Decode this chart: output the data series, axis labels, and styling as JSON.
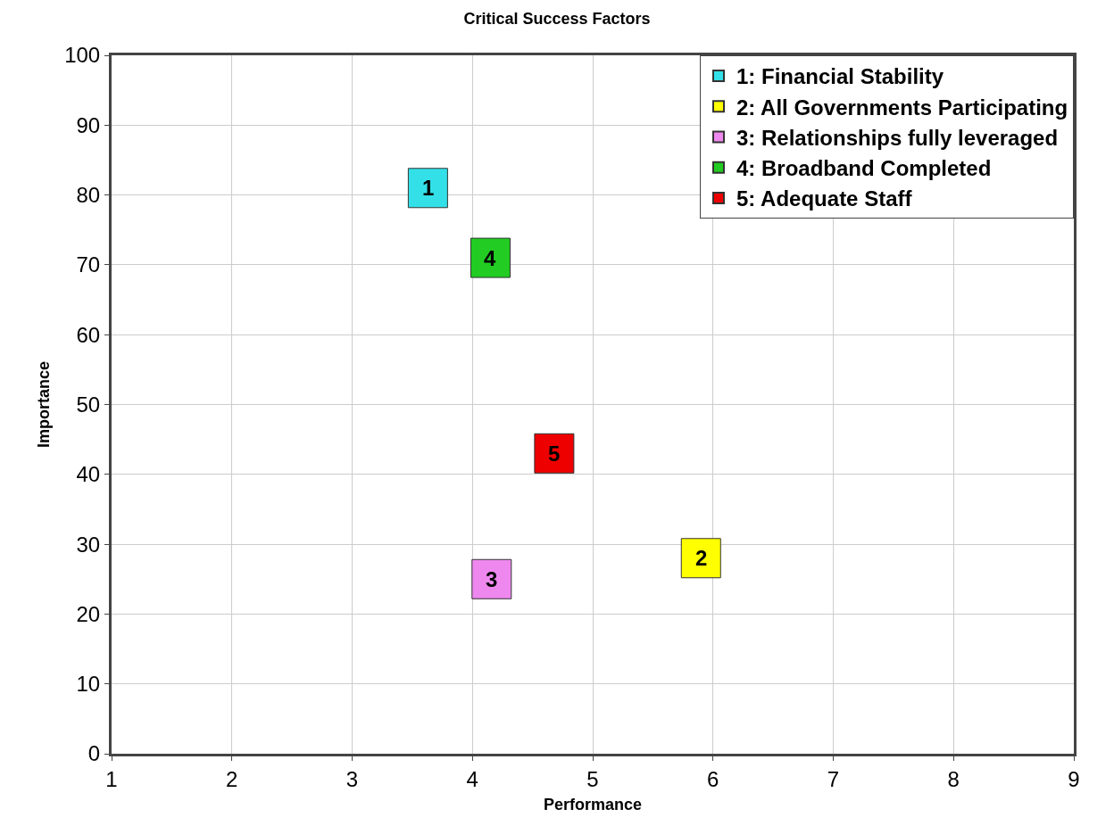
{
  "chart_data": {
    "type": "scatter",
    "title": "Critical Success Factors",
    "xlabel": "Performance",
    "ylabel": "Importance",
    "xlim": [
      1,
      9
    ],
    "xticks": [
      1,
      2,
      3,
      4,
      5,
      6,
      7,
      8,
      9
    ],
    "ylim": [
      0,
      100
    ],
    "yticks": [
      0,
      10,
      20,
      30,
      40,
      50,
      60,
      70,
      80,
      90,
      100
    ],
    "annotations": [
      {
        "text": "1",
        "x": 3.63,
        "y": 81
      },
      {
        "text": "2",
        "x": 5.9,
        "y": 28
      },
      {
        "text": "3",
        "x": 4.16,
        "y": 25
      },
      {
        "text": "4",
        "x": 4.15,
        "y": 71
      },
      {
        "text": "5",
        "x": 4.68,
        "y": 43
      }
    ],
    "grid": true,
    "legend": "top right",
    "marker": "square",
    "series": [
      {
        "name": "1: Financial Stability",
        "color": "#33e0e8",
        "x": [
          3.63
        ],
        "values": [
          81
        ]
      },
      {
        "name": "2: All Governments Participating",
        "color": "#ffff00",
        "x": [
          5.9
        ],
        "values": [
          28
        ]
      },
      {
        "name": "3: Relationships fully leveraged",
        "color": "#ee88ee",
        "x": [
          4.16
        ],
        "values": [
          25
        ]
      },
      {
        "name": "4: Broadband Completed",
        "color": "#22cc22",
        "x": [
          4.15
        ],
        "values": [
          71
        ]
      },
      {
        "name": "5: Adequate Staff",
        "color": "#ee0000",
        "x": [
          4.68
        ],
        "values": [
          43
        ]
      }
    ]
  }
}
